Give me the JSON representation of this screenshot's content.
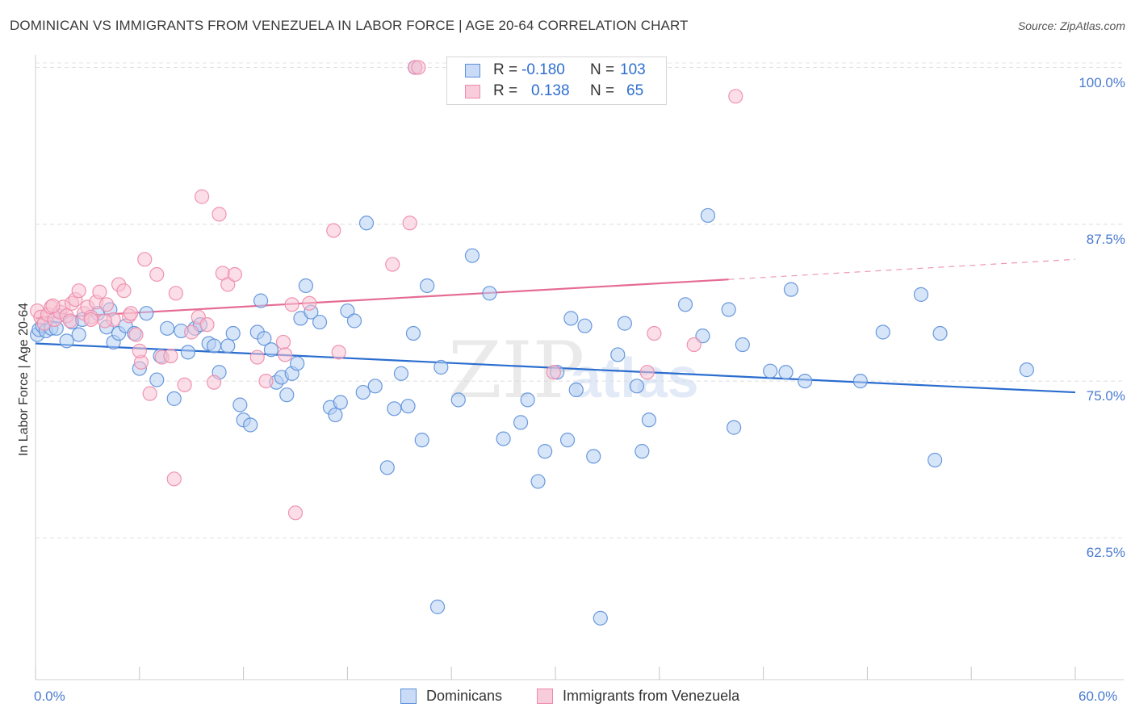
{
  "title": "DOMINICAN VS IMMIGRANTS FROM VENEZUELA IN LABOR FORCE | AGE 20-64 CORRELATION CHART",
  "source": "Source: ZipAtlas.com",
  "watermark": {
    "zip": "ZIP",
    "atlas": "atlas"
  },
  "legend": {
    "rows": [
      {
        "r_label": "R =",
        "r_value": "-0.180",
        "n_label": "N =",
        "n_value": "103"
      },
      {
        "r_label": "R =",
        "r_value": "0.138",
        "n_label": "N =",
        "n_value": "65"
      }
    ]
  },
  "bottom_legend": {
    "items": [
      "Dominicans",
      "Immigrants from Venezuela"
    ]
  },
  "chart_data": {
    "type": "scatter",
    "title": "DOMINICAN VS IMMIGRANTS FROM VENEZUELA IN LABOR FORCE | AGE 20-64 CORRELATION CHART",
    "xlabel": "",
    "ylabel": "In Labor Force | Age 20-64",
    "xlim": [
      0,
      60
    ],
    "ylim": [
      51.2,
      101.0
    ],
    "x_tick_labels": [
      "0.0%",
      "60.0%"
    ],
    "y_tick_labels": [
      "100.0%",
      "87.5%",
      "75.0%",
      "62.5%"
    ],
    "y_ticks": [
      100.0,
      87.5,
      75.0,
      62.5
    ],
    "x_minor_ticks": [
      0,
      6,
      12,
      18,
      24,
      30,
      36,
      42,
      48,
      54,
      60
    ],
    "grid": true,
    "legend_position": "top-center",
    "colors": {
      "dominicans": "#5b8fd9",
      "dominicans_line": "#2a6dcf",
      "venezuela": "#ee8aaa",
      "venezuela_line": "#e56b93"
    },
    "series": [
      {
        "name": "Dominicans",
        "r": -0.18,
        "n": 103,
        "trend": {
          "x0": 0,
          "y0": 78.0,
          "x1": 60,
          "y1": 74.1
        },
        "points": [
          [
            0.1,
            78.7
          ],
          [
            0.2,
            79.1
          ],
          [
            0.4,
            79.4
          ],
          [
            0.6,
            79.0
          ],
          [
            0.9,
            79.2
          ],
          [
            1.2,
            79.2
          ],
          [
            1.3,
            80.2
          ],
          [
            1.8,
            78.2
          ],
          [
            2.1,
            79.7
          ],
          [
            2.5,
            78.7
          ],
          [
            2.7,
            79.9
          ],
          [
            3.6,
            80.4
          ],
          [
            4.1,
            79.3
          ],
          [
            4.3,
            80.7
          ],
          [
            4.5,
            78.1
          ],
          [
            4.8,
            78.8
          ],
          [
            5.2,
            79.4
          ],
          [
            5.7,
            78.8
          ],
          [
            6.0,
            76.0
          ],
          [
            6.4,
            80.4
          ],
          [
            7.0,
            75.1
          ],
          [
            7.2,
            77.0
          ],
          [
            7.6,
            79.2
          ],
          [
            8.0,
            73.6
          ],
          [
            8.4,
            79.0
          ],
          [
            8.8,
            77.3
          ],
          [
            9.2,
            79.2
          ],
          [
            9.5,
            79.5
          ],
          [
            10.0,
            78.0
          ],
          [
            10.3,
            77.8
          ],
          [
            10.6,
            75.7
          ],
          [
            11.1,
            77.8
          ],
          [
            11.4,
            78.8
          ],
          [
            11.8,
            73.1
          ],
          [
            12.0,
            71.9
          ],
          [
            12.4,
            71.5
          ],
          [
            12.8,
            78.9
          ],
          [
            13.0,
            81.4
          ],
          [
            13.2,
            78.4
          ],
          [
            13.6,
            77.5
          ],
          [
            13.9,
            74.9
          ],
          [
            14.2,
            75.3
          ],
          [
            14.5,
            73.9
          ],
          [
            14.8,
            75.6
          ],
          [
            15.1,
            76.4
          ],
          [
            15.3,
            80.0
          ],
          [
            15.6,
            82.6
          ],
          [
            15.9,
            80.5
          ],
          [
            16.4,
            79.7
          ],
          [
            17.0,
            72.9
          ],
          [
            17.3,
            72.3
          ],
          [
            17.6,
            73.3
          ],
          [
            18.0,
            80.6
          ],
          [
            18.4,
            79.8
          ],
          [
            18.9,
            74.1
          ],
          [
            19.1,
            87.6
          ],
          [
            19.6,
            74.6
          ],
          [
            20.3,
            68.1
          ],
          [
            20.7,
            72.8
          ],
          [
            21.1,
            75.6
          ],
          [
            21.5,
            73.0
          ],
          [
            21.8,
            78.8
          ],
          [
            22.3,
            70.3
          ],
          [
            22.6,
            82.6
          ],
          [
            23.2,
            57.0
          ],
          [
            23.4,
            76.1
          ],
          [
            24.4,
            73.5
          ],
          [
            25.2,
            85.0
          ],
          [
            26.2,
            82.0
          ],
          [
            27.0,
            70.4
          ],
          [
            28.0,
            71.7
          ],
          [
            28.4,
            73.5
          ],
          [
            29.0,
            67.0
          ],
          [
            29.4,
            69.4
          ],
          [
            30.1,
            75.7
          ],
          [
            30.7,
            70.3
          ],
          [
            30.9,
            80.0
          ],
          [
            31.2,
            74.3
          ],
          [
            31.7,
            79.4
          ],
          [
            32.2,
            69.0
          ],
          [
            32.6,
            56.1
          ],
          [
            33.6,
            77.1
          ],
          [
            34.0,
            79.6
          ],
          [
            34.7,
            74.6
          ],
          [
            35.0,
            69.4
          ],
          [
            35.4,
            71.9
          ],
          [
            37.5,
            81.1
          ],
          [
            38.5,
            78.6
          ],
          [
            38.8,
            88.2
          ],
          [
            40.0,
            80.7
          ],
          [
            40.3,
            71.3
          ],
          [
            40.8,
            77.9
          ],
          [
            42.4,
            75.8
          ],
          [
            43.3,
            75.7
          ],
          [
            43.6,
            82.3
          ],
          [
            44.4,
            75.0
          ],
          [
            47.6,
            75.0
          ],
          [
            48.9,
            78.9
          ],
          [
            51.1,
            81.9
          ],
          [
            51.9,
            68.7
          ],
          [
            52.2,
            78.8
          ],
          [
            57.2,
            75.9
          ],
          [
            21.9,
            100.0
          ]
        ]
      },
      {
        "name": "Immigrants from Venezuela",
        "r": 0.138,
        "n": 65,
        "trend": {
          "x0": 0,
          "y0": 80.0,
          "x1": 40,
          "y1": 83.1,
          "dash_x1": 60,
          "dash_y1": 84.7
        },
        "points": [
          [
            0.1,
            80.6
          ],
          [
            0.3,
            80.1
          ],
          [
            0.5,
            79.6
          ],
          [
            0.7,
            80.3
          ],
          [
            0.9,
            80.9
          ],
          [
            1.1,
            79.9
          ],
          [
            1.4,
            80.5
          ],
          [
            1.6,
            80.9
          ],
          [
            1.8,
            80.2
          ],
          [
            2.1,
            81.2
          ],
          [
            2.3,
            81.5
          ],
          [
            2.5,
            82.2
          ],
          [
            2.8,
            80.4
          ],
          [
            3.0,
            80.9
          ],
          [
            3.2,
            80.1
          ],
          [
            3.5,
            81.3
          ],
          [
            3.7,
            82.1
          ],
          [
            4.1,
            81.1
          ],
          [
            4.5,
            79.9
          ],
          [
            4.8,
            82.7
          ],
          [
            5.1,
            82.2
          ],
          [
            5.4,
            80.2
          ],
          [
            5.8,
            78.7
          ],
          [
            6.1,
            76.5
          ],
          [
            6.3,
            84.7
          ],
          [
            6.6,
            74.0
          ],
          [
            7.0,
            83.5
          ],
          [
            7.3,
            76.9
          ],
          [
            7.8,
            77.0
          ],
          [
            8.1,
            82.0
          ],
          [
            8.6,
            74.7
          ],
          [
            9.0,
            78.9
          ],
          [
            9.4,
            80.1
          ],
          [
            9.6,
            89.7
          ],
          [
            9.9,
            79.5
          ],
          [
            10.3,
            74.9
          ],
          [
            10.6,
            88.3
          ],
          [
            10.8,
            83.6
          ],
          [
            11.1,
            82.7
          ],
          [
            11.5,
            83.5
          ],
          [
            12.8,
            76.9
          ],
          [
            13.3,
            75.0
          ],
          [
            14.3,
            78.1
          ],
          [
            14.8,
            81.1
          ],
          [
            14.4,
            77.1
          ],
          [
            15.0,
            64.5
          ],
          [
            15.8,
            81.2
          ],
          [
            17.2,
            87.0
          ],
          [
            17.5,
            77.3
          ],
          [
            20.6,
            84.3
          ],
          [
            21.6,
            87.6
          ],
          [
            21.9,
            100.0
          ],
          [
            22.1,
            100.0
          ],
          [
            29.9,
            75.7
          ],
          [
            35.3,
            75.7
          ],
          [
            35.7,
            78.8
          ],
          [
            38.0,
            77.9
          ],
          [
            40.4,
            97.7
          ],
          [
            8.0,
            67.2
          ],
          [
            4.0,
            79.8
          ],
          [
            5.5,
            80.4
          ],
          [
            6.0,
            77.4
          ],
          [
            1.0,
            81.0
          ],
          [
            2.0,
            79.8
          ],
          [
            3.2,
            79.9
          ]
        ]
      }
    ]
  }
}
